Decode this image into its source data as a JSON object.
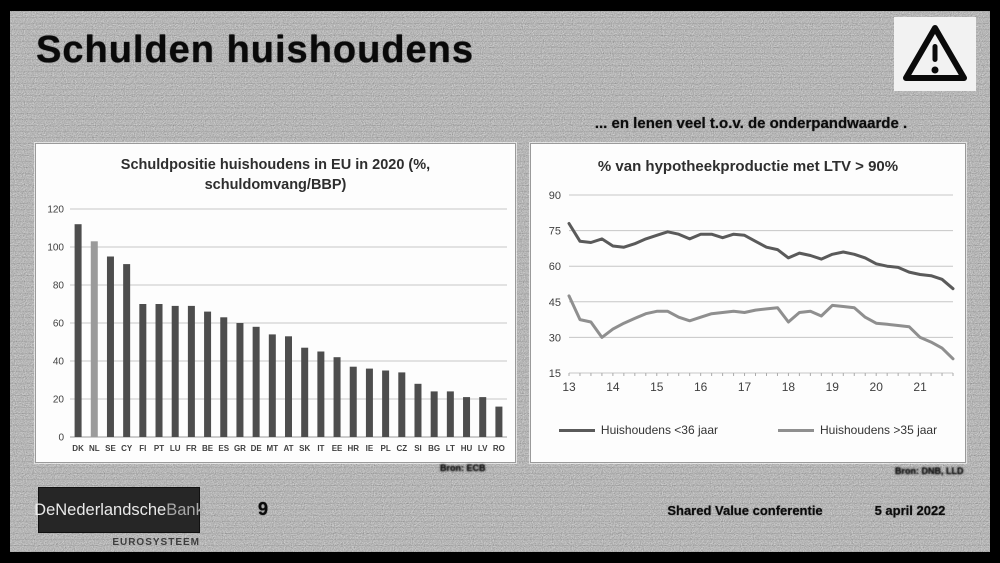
{
  "slide": {
    "title": "Schulden  huishoudens",
    "subtitle_right": "... en lenen veel t.o.v.  de onderpandwaarde .",
    "page_number": "9",
    "footer_event": "Shared Value conferentie",
    "footer_date": "5 april 2022",
    "source_left": "Bron: ECB",
    "source_right": "Bron: DNB, LLD"
  },
  "logo": {
    "main": "DeNederlandsche",
    "accent": "Bank",
    "subtext": "EUROSYSTEEM"
  },
  "colors": {
    "bar": "#4d4d4d",
    "bar_highlight": "#9b9b9b",
    "line_dark": "#5a5a5a",
    "line_light": "#8f8f8f",
    "grid": "#c6c6c6",
    "axis_text": "#3f3f3f"
  },
  "chart_data": [
    {
      "type": "bar",
      "title": "Schuldpositie huishoudens in EU in 2020 (%, schuldomvang/BBP)",
      "categories": [
        "DK",
        "NL",
        "SE",
        "CY",
        "FI",
        "PT",
        "LU",
        "FR",
        "BE",
        "ES",
        "GR",
        "DE",
        "MT",
        "AT",
        "SK",
        "IT",
        "EE",
        "HR",
        "IE",
        "PL",
        "CZ",
        "SI",
        "BG",
        "LT",
        "HU",
        "LV",
        "RO"
      ],
      "values": [
        112,
        103,
        95,
        91,
        70,
        70,
        69,
        69,
        66,
        63,
        60,
        58,
        54,
        53,
        47,
        45,
        42,
        37,
        36,
        35,
        34,
        28,
        24,
        24,
        21,
        21,
        16
      ],
      "highlight_category": "NL",
      "xlabel": "",
      "ylabel": "",
      "ylim": [
        0,
        120
      ],
      "yticks": [
        0,
        20,
        40,
        60,
        80,
        100,
        120
      ],
      "grid": true,
      "legend_position": "none"
    },
    {
      "type": "line",
      "title": "% van hypotheekproductie  met LTV > 90%",
      "x_range": [
        13,
        21.75
      ],
      "x_step": 0.25,
      "x_ticks": [
        13,
        14,
        15,
        16,
        17,
        18,
        19,
        20,
        21
      ],
      "series": [
        {
          "name": "Huishoudens <36 jaar",
          "color_key": "line_dark",
          "values": [
            78,
            70.5,
            70,
            71.5,
            68.5,
            68,
            69.5,
            71.5,
            73,
            74.5,
            73.5,
            71.5,
            73.5,
            73.5,
            72,
            73.5,
            73,
            70.5,
            68,
            67,
            63.5,
            65.5,
            64.5,
            63,
            65,
            66,
            65,
            63.5,
            61,
            60,
            59.5,
            57.5,
            56.5,
            56,
            54.5,
            50.5
          ]
        },
        {
          "name": "Huishoudens >35 jaar",
          "color_key": "line_light",
          "values": [
            47.5,
            37.5,
            36.5,
            30,
            33.5,
            36,
            38,
            40,
            41,
            41,
            38.5,
            37,
            38.5,
            40,
            40.5,
            41,
            40.5,
            41.5,
            42,
            42.5,
            36.5,
            40.5,
            41,
            39,
            43.5,
            43,
            42.5,
            38.5,
            36,
            35.5,
            35,
            34.5,
            30,
            28,
            25.5,
            21
          ]
        }
      ],
      "ylim": [
        15,
        90
      ],
      "yticks": [
        15,
        30,
        45,
        60,
        75,
        90
      ],
      "grid": true,
      "legend_position": "bottom"
    }
  ]
}
